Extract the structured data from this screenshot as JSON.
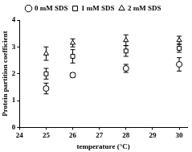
{
  "chart_data": {
    "type": "scatter",
    "x_label": "temperature (°C)",
    "y_label": "Protein partition coefficient",
    "x": [
      25,
      26,
      28,
      30
    ],
    "series": [
      {
        "name": "0 mM SDS",
        "color": "#000000",
        "marker": "circle",
        "values": [
          1.45,
          1.95,
          2.2,
          2.35
        ],
        "error": [
          0.2,
          0.08,
          0.15,
          0.25
        ]
      },
      {
        "name": "1 mM SDS",
        "color": "#000000",
        "marker": "square",
        "values": [
          2.0,
          2.65,
          2.85,
          2.95
        ],
        "error": [
          0.2,
          0.25,
          0.2,
          0.15
        ]
      },
      {
        "name": "2 mM SDS",
        "color": "#000000",
        "marker": "triangle",
        "values": [
          2.75,
          3.15,
          3.25,
          3.25
        ],
        "error": [
          0.25,
          0.15,
          0.2,
          0.15
        ]
      }
    ],
    "xlim": [
      24,
      30.3
    ],
    "xticks": [
      24,
      25,
      26,
      27,
      28,
      29,
      30
    ],
    "ylim": [
      0,
      4
    ],
    "yticks": [
      0,
      1,
      2,
      3,
      4
    ],
    "grid": false,
    "legend": "top"
  }
}
